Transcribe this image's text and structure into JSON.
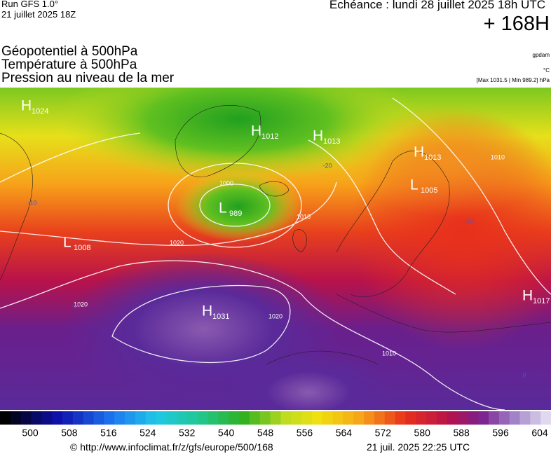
{
  "header": {
    "run": "Run GFS 1.0°",
    "run_date": "21 juillet 2025 18Z",
    "valid": "Echéance : lundi 28 juillet 2025 18h UTC",
    "lead": "+ 168H",
    "fields": [
      "Géopotentiel à 500hPa",
      "Température à 500hPa",
      "Pression au niveau de la mer"
    ],
    "units": [
      "gpdam",
      "°C"
    ],
    "range": "[Max 1031.5 | Min 989.2] hPa"
  },
  "systems": [
    {
      "kind": "H",
      "value": 1024
    },
    {
      "kind": "H",
      "value": 1012
    },
    {
      "kind": "H",
      "value": 1013
    },
    {
      "kind": "L",
      "value": 989
    },
    {
      "kind": "L",
      "value": 1008
    },
    {
      "kind": "H",
      "value": 1031
    },
    {
      "kind": "H",
      "value": 1013
    },
    {
      "kind": "L",
      "value": 1005
    },
    {
      "kind": "H",
      "value": 1017
    }
  ],
  "isobar_labels": [
    1000,
    1020,
    1020,
    1020,
    1010,
    1010,
    1010
  ],
  "temperature_labels": [
    -20,
    -10,
    -10,
    -10,
    0
  ],
  "colorbar": {
    "ticks": [
      500,
      508,
      516,
      524,
      532,
      540,
      548,
      556,
      564,
      572,
      580,
      588,
      596,
      604
    ]
  },
  "footer": {
    "source": "© http://www.infoclimat.fr/z/gfs/europe/500/168",
    "generated": "21 juil. 2025 22:25 UTC"
  }
}
